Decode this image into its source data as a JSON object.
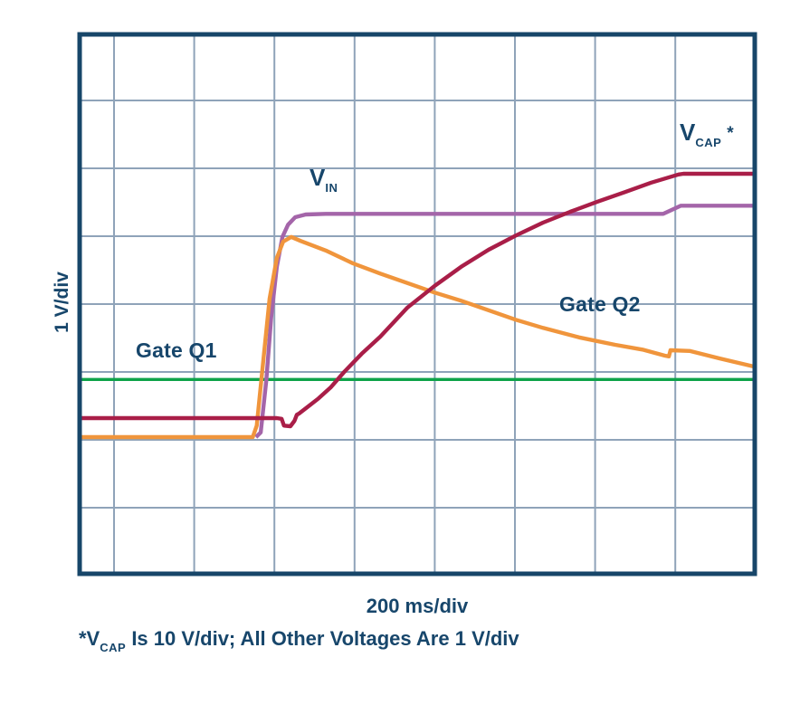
{
  "page": {
    "background": "#FFFFFF"
  },
  "colors": {
    "navy_text": "#17466B",
    "plot_border": "#174669",
    "grid_line": "#8FA3B9",
    "gate_q1_green": "#0EA349",
    "gate_q2_orange": "#F0953C",
    "vin_purple": "#A465A9",
    "vcap_crimson": "#A91E48"
  },
  "figure": {
    "y_axis_label": "1 V/div",
    "x_axis_label": "200 ms/div",
    "footnote": {
      "prefix": "*V",
      "sub": "CAP",
      "text": " Is 10 V/div; All Other Voltages Are 1 V/div"
    }
  },
  "chart_data": {
    "type": "line",
    "title": "",
    "xlabel": "200 ms/div",
    "ylabel": "1 V/div",
    "x_units": "horizontal divisions, 200 ms per division",
    "y_units": "vertical divisions, 1 V per division (VCAP trace is 10 V per division)",
    "xlim": [
      -0.45,
      8.01
    ],
    "ylim": [
      0,
      8
    ],
    "grid": true,
    "legend_position": "inline annotations on traces",
    "series": [
      {
        "name": "Gate Q1",
        "color": "#0EA349",
        "points": [
          [
            -0.45,
            2.89
          ],
          [
            8.01,
            2.89
          ]
        ]
      },
      {
        "name": "VIN",
        "color": "#A465A9",
        "points": [
          [
            1.77,
            2.04
          ],
          [
            1.83,
            2.11
          ],
          [
            1.9,
            2.88
          ],
          [
            1.96,
            3.81
          ],
          [
            2.03,
            4.55
          ],
          [
            2.1,
            4.99
          ],
          [
            2.17,
            5.17
          ],
          [
            2.26,
            5.28
          ],
          [
            2.39,
            5.32
          ],
          [
            2.64,
            5.33
          ],
          [
            6.85,
            5.33
          ],
          [
            7.07,
            5.45
          ],
          [
            8.01,
            5.45
          ]
        ]
      },
      {
        "name": "Gate Q2",
        "color": "#F0953C",
        "points": [
          [
            -0.45,
            2.04
          ],
          [
            1.73,
            2.04
          ],
          [
            1.78,
            2.21
          ],
          [
            1.86,
            3.15
          ],
          [
            1.94,
            4.08
          ],
          [
            2.03,
            4.68
          ],
          [
            2.11,
            4.92
          ],
          [
            2.21,
            4.99
          ],
          [
            2.33,
            4.93
          ],
          [
            2.64,
            4.79
          ],
          [
            2.98,
            4.6
          ],
          [
            3.32,
            4.45
          ],
          [
            3.66,
            4.31
          ],
          [
            4.0,
            4.17
          ],
          [
            4.33,
            4.05
          ],
          [
            4.67,
            3.91
          ],
          [
            5.01,
            3.77
          ],
          [
            5.35,
            3.65
          ],
          [
            5.8,
            3.51
          ],
          [
            6.25,
            3.4
          ],
          [
            6.59,
            3.33
          ],
          [
            6.87,
            3.24
          ],
          [
            6.92,
            3.23
          ],
          [
            6.94,
            3.32
          ],
          [
            7.18,
            3.31
          ],
          [
            7.55,
            3.2
          ],
          [
            7.98,
            3.08
          ]
        ]
      },
      {
        "name": "VCAP",
        "color": "#A91E48",
        "scale_note": "10 V/div",
        "points": [
          [
            -0.45,
            2.32
          ],
          [
            2.03,
            2.32
          ],
          [
            2.09,
            2.31
          ],
          [
            2.12,
            2.21
          ],
          [
            2.2,
            2.2
          ],
          [
            2.25,
            2.28
          ],
          [
            2.28,
            2.37
          ],
          [
            2.31,
            2.39
          ],
          [
            2.42,
            2.49
          ],
          [
            2.55,
            2.61
          ],
          [
            2.7,
            2.77
          ],
          [
            2.87,
            3.0
          ],
          [
            3.09,
            3.27
          ],
          [
            3.32,
            3.52
          ],
          [
            3.66,
            3.95
          ],
          [
            4.0,
            4.27
          ],
          [
            4.33,
            4.55
          ],
          [
            4.67,
            4.8
          ],
          [
            5.01,
            5.01
          ],
          [
            5.35,
            5.2
          ],
          [
            5.69,
            5.36
          ],
          [
            6.03,
            5.51
          ],
          [
            6.37,
            5.65
          ],
          [
            6.7,
            5.79
          ],
          [
            7.04,
            5.91
          ],
          [
            7.1,
            5.92
          ],
          [
            8.01,
            5.92
          ]
        ]
      }
    ],
    "annotations": [
      {
        "id": "vin",
        "label": "V_IN",
        "main": "V",
        "sub": "IN",
        "sup": ""
      },
      {
        "id": "vcap",
        "label": "V_CAP*",
        "main": "V",
        "sub": "CAP",
        "sup": "*"
      },
      {
        "id": "gateq1",
        "label": "Gate Q1",
        "main": "Gate Q1",
        "sub": "",
        "sup": ""
      },
      {
        "id": "gateq2",
        "label": "Gate Q2",
        "main": "Gate Q2",
        "sub": "",
        "sup": ""
      }
    ]
  }
}
